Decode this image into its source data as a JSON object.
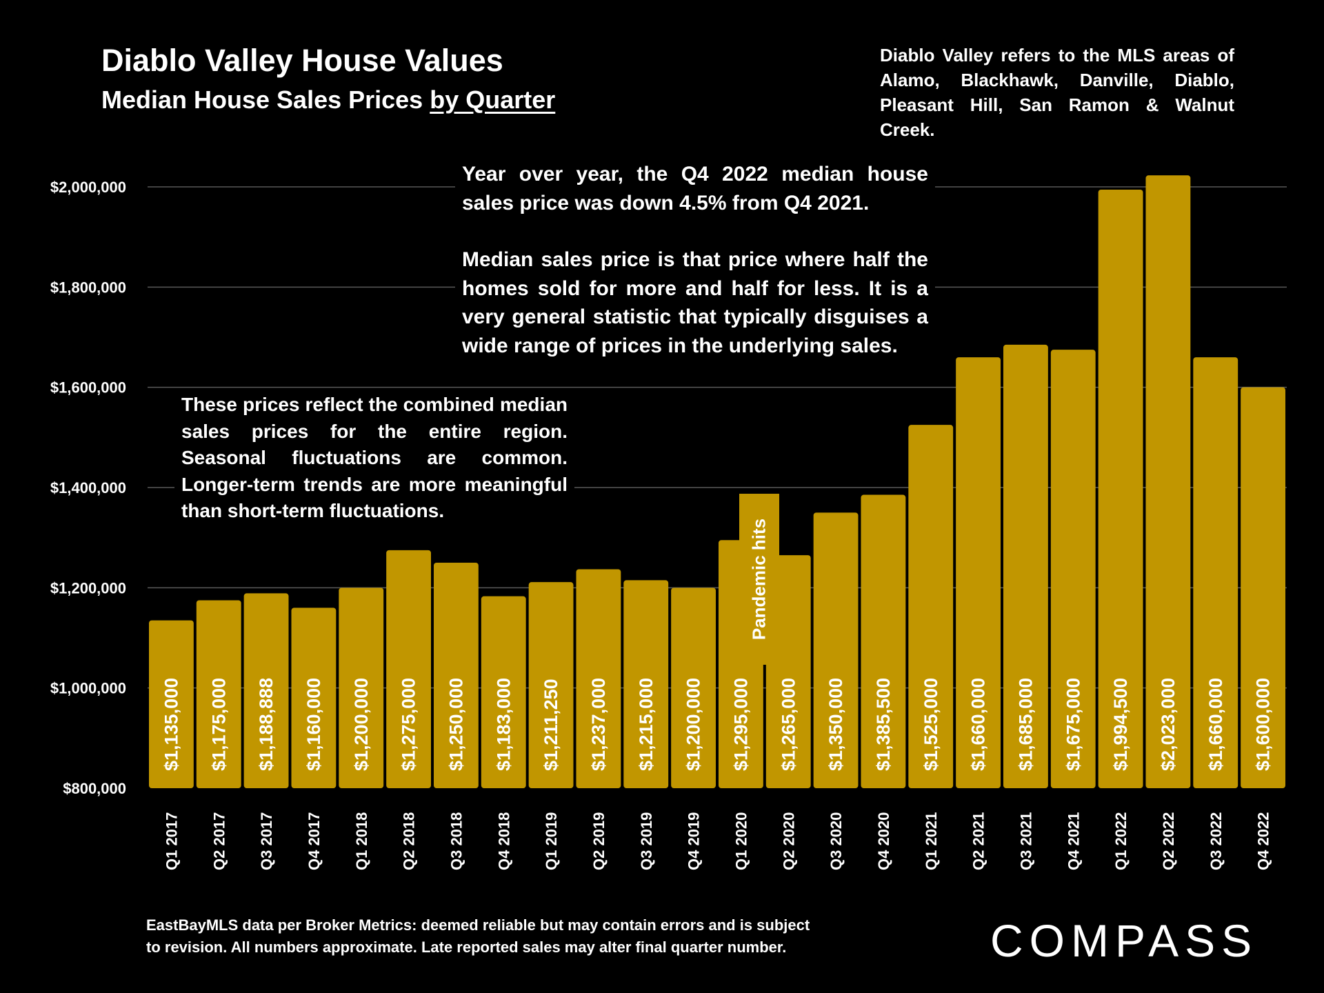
{
  "header": {
    "title": "Diablo Valley House Values",
    "subtitle_prefix": "Median House Sales Prices ",
    "subtitle_link": "by Quarter"
  },
  "region_note": [
    "Diablo Valley refers to the MLS areas of",
    "Alamo, Blackhawk, Danville, Diablo,",
    "Pleasant Hill, San Ramon & Walnut Creek."
  ],
  "yoy_note": {
    "p1": "Year over year, the Q4 2022 median house sales price was down 4.5% from Q4 2021.",
    "p2": "Median sales price is that price where half the homes sold for more and half for less. It is a very general statistic that typically disguises a wide range of prices in the underlying sales."
  },
  "combined_note": "These prices reflect the combined median sales prices for the entire region. Seasonal fluctuations are common. Longer-term trends are more meaningful than short-term fluctuations.",
  "pandemic_label": "Pandemic hits",
  "footnote": [
    "EastBayMLS data per Broker Metrics:  deemed reliable but may contain errors and is subject",
    "to revision. All numbers approximate. Late reported sales may alter final quarter number."
  ],
  "logo": "COMPASS",
  "colors": {
    "bar": "#c19600",
    "grid": "#595959",
    "background": "#000000"
  },
  "chart_data": {
    "type": "bar",
    "title": "Diablo Valley House Values",
    "subtitle": "Median House Sales Prices by Quarter",
    "xlabel": "",
    "ylabel": "",
    "ylim": [
      800000,
      2000000
    ],
    "yticks": [
      800000,
      1000000,
      1200000,
      1400000,
      1600000,
      1800000,
      2000000
    ],
    "ytick_labels": [
      "$800,000",
      "$1,000,000",
      "$1,200,000",
      "$1,400,000",
      "$1,600,000",
      "$1,800,000",
      "$2,000,000"
    ],
    "grid": true,
    "categories": [
      "Q1 2017",
      "Q2 2017",
      "Q3 2017",
      "Q4 2017",
      "Q1 2018",
      "Q2 2018",
      "Q3 2018",
      "Q4 2018",
      "Q1 2019",
      "Q2 2019",
      "Q3 2019",
      "Q4 2019",
      "Q1 2020",
      "Q2 2020",
      "Q3 2020",
      "Q4 2020",
      "Q1 2021",
      "Q2 2021",
      "Q3 2021",
      "Q4 2021",
      "Q1 2022",
      "Q2 2022",
      "Q3 2022",
      "Q4 2022"
    ],
    "values": [
      1135000,
      1175000,
      1188888,
      1160000,
      1200000,
      1275000,
      1250000,
      1183000,
      1211250,
      1237000,
      1215000,
      1200000,
      1295000,
      1265000,
      1350000,
      1385500,
      1525000,
      1660000,
      1685000,
      1675000,
      1994500,
      2023000,
      1660000,
      1600000
    ],
    "value_labels": [
      "$1,135,000",
      "$1,175,000",
      "$1,188,888",
      "$1,160,000",
      "$1,200,000",
      "$1,275,000",
      "$1,250,000",
      "$1,183,000",
      "$1,211,250",
      "$1,237,000",
      "$1,215,000",
      "$1,200,000",
      "$1,295,000",
      "$1,265,000",
      "$1,350,000",
      "$1,385,500",
      "$1,525,000",
      "$1,660,000",
      "$1,685,000",
      "$1,675,000",
      "$1,994,500",
      "$2,023,000",
      "$1,660,000",
      "$1,600,000"
    ]
  }
}
